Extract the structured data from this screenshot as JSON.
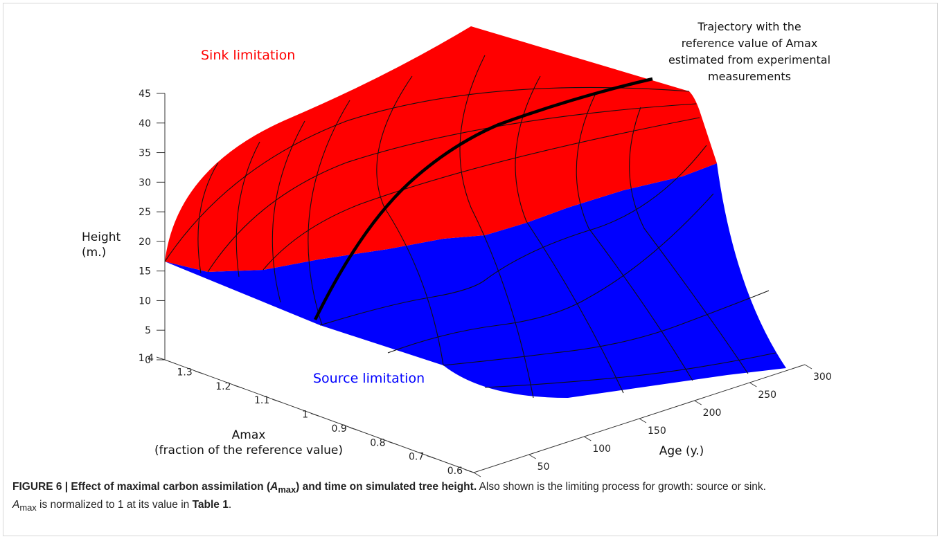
{
  "chart_data": {
    "type": "surface3d",
    "z_axis": {
      "label_line1": "Height",
      "label_line2": "(m.)",
      "range": [
        0,
        45
      ],
      "ticks": [
        "0",
        "5",
        "10",
        "15",
        "20",
        "25",
        "30",
        "35",
        "40",
        "45"
      ]
    },
    "y_axis": {
      "label_line1": "Amax",
      "label_line2": "(fraction of the reference value)",
      "range": [
        0.6,
        1.4
      ],
      "ticks": [
        "1.4",
        "1.3",
        "1.2",
        "1.1",
        "1",
        "0.9",
        "0.8",
        "0.7",
        "0.6"
      ]
    },
    "x_axis": {
      "label": "Age (y.)",
      "range": [
        0,
        300
      ],
      "ticks": [
        "0",
        "50",
        "100",
        "150",
        "200",
        "250",
        "300"
      ]
    },
    "regions": [
      {
        "label": "Sink limitation",
        "color": "#ff0000"
      },
      {
        "label": "Source limitation",
        "color": "#0000ff"
      }
    ],
    "annotation": {
      "lines": [
        "Trajectory with the",
        "reference value of Amax",
        "estimated from experimental",
        "measurements"
      ],
      "trajectory": {
        "amax": 1.0,
        "age": [
          0,
          25,
          50,
          75,
          100,
          150,
          200,
          250,
          300
        ],
        "height": [
          0,
          9,
          17,
          24,
          29,
          35,
          38.5,
          40.5,
          41.5
        ]
      }
    }
  },
  "caption": {
    "figure_label": "FIGURE 6 | Effect of maximal carbon assimilation (",
    "symbol_letter": "A",
    "symbol_sub": "max",
    "title_end": ") and time on simulated tree height.",
    "sentence1": " Also shown is the limiting process for growth: source or sink.",
    "line2_symbol_letter": "A",
    "line2_symbol_sub": "max",
    "line2_text": " is normalized to 1 at its value in ",
    "table_ref": "Table 1",
    "line2_end": "."
  }
}
